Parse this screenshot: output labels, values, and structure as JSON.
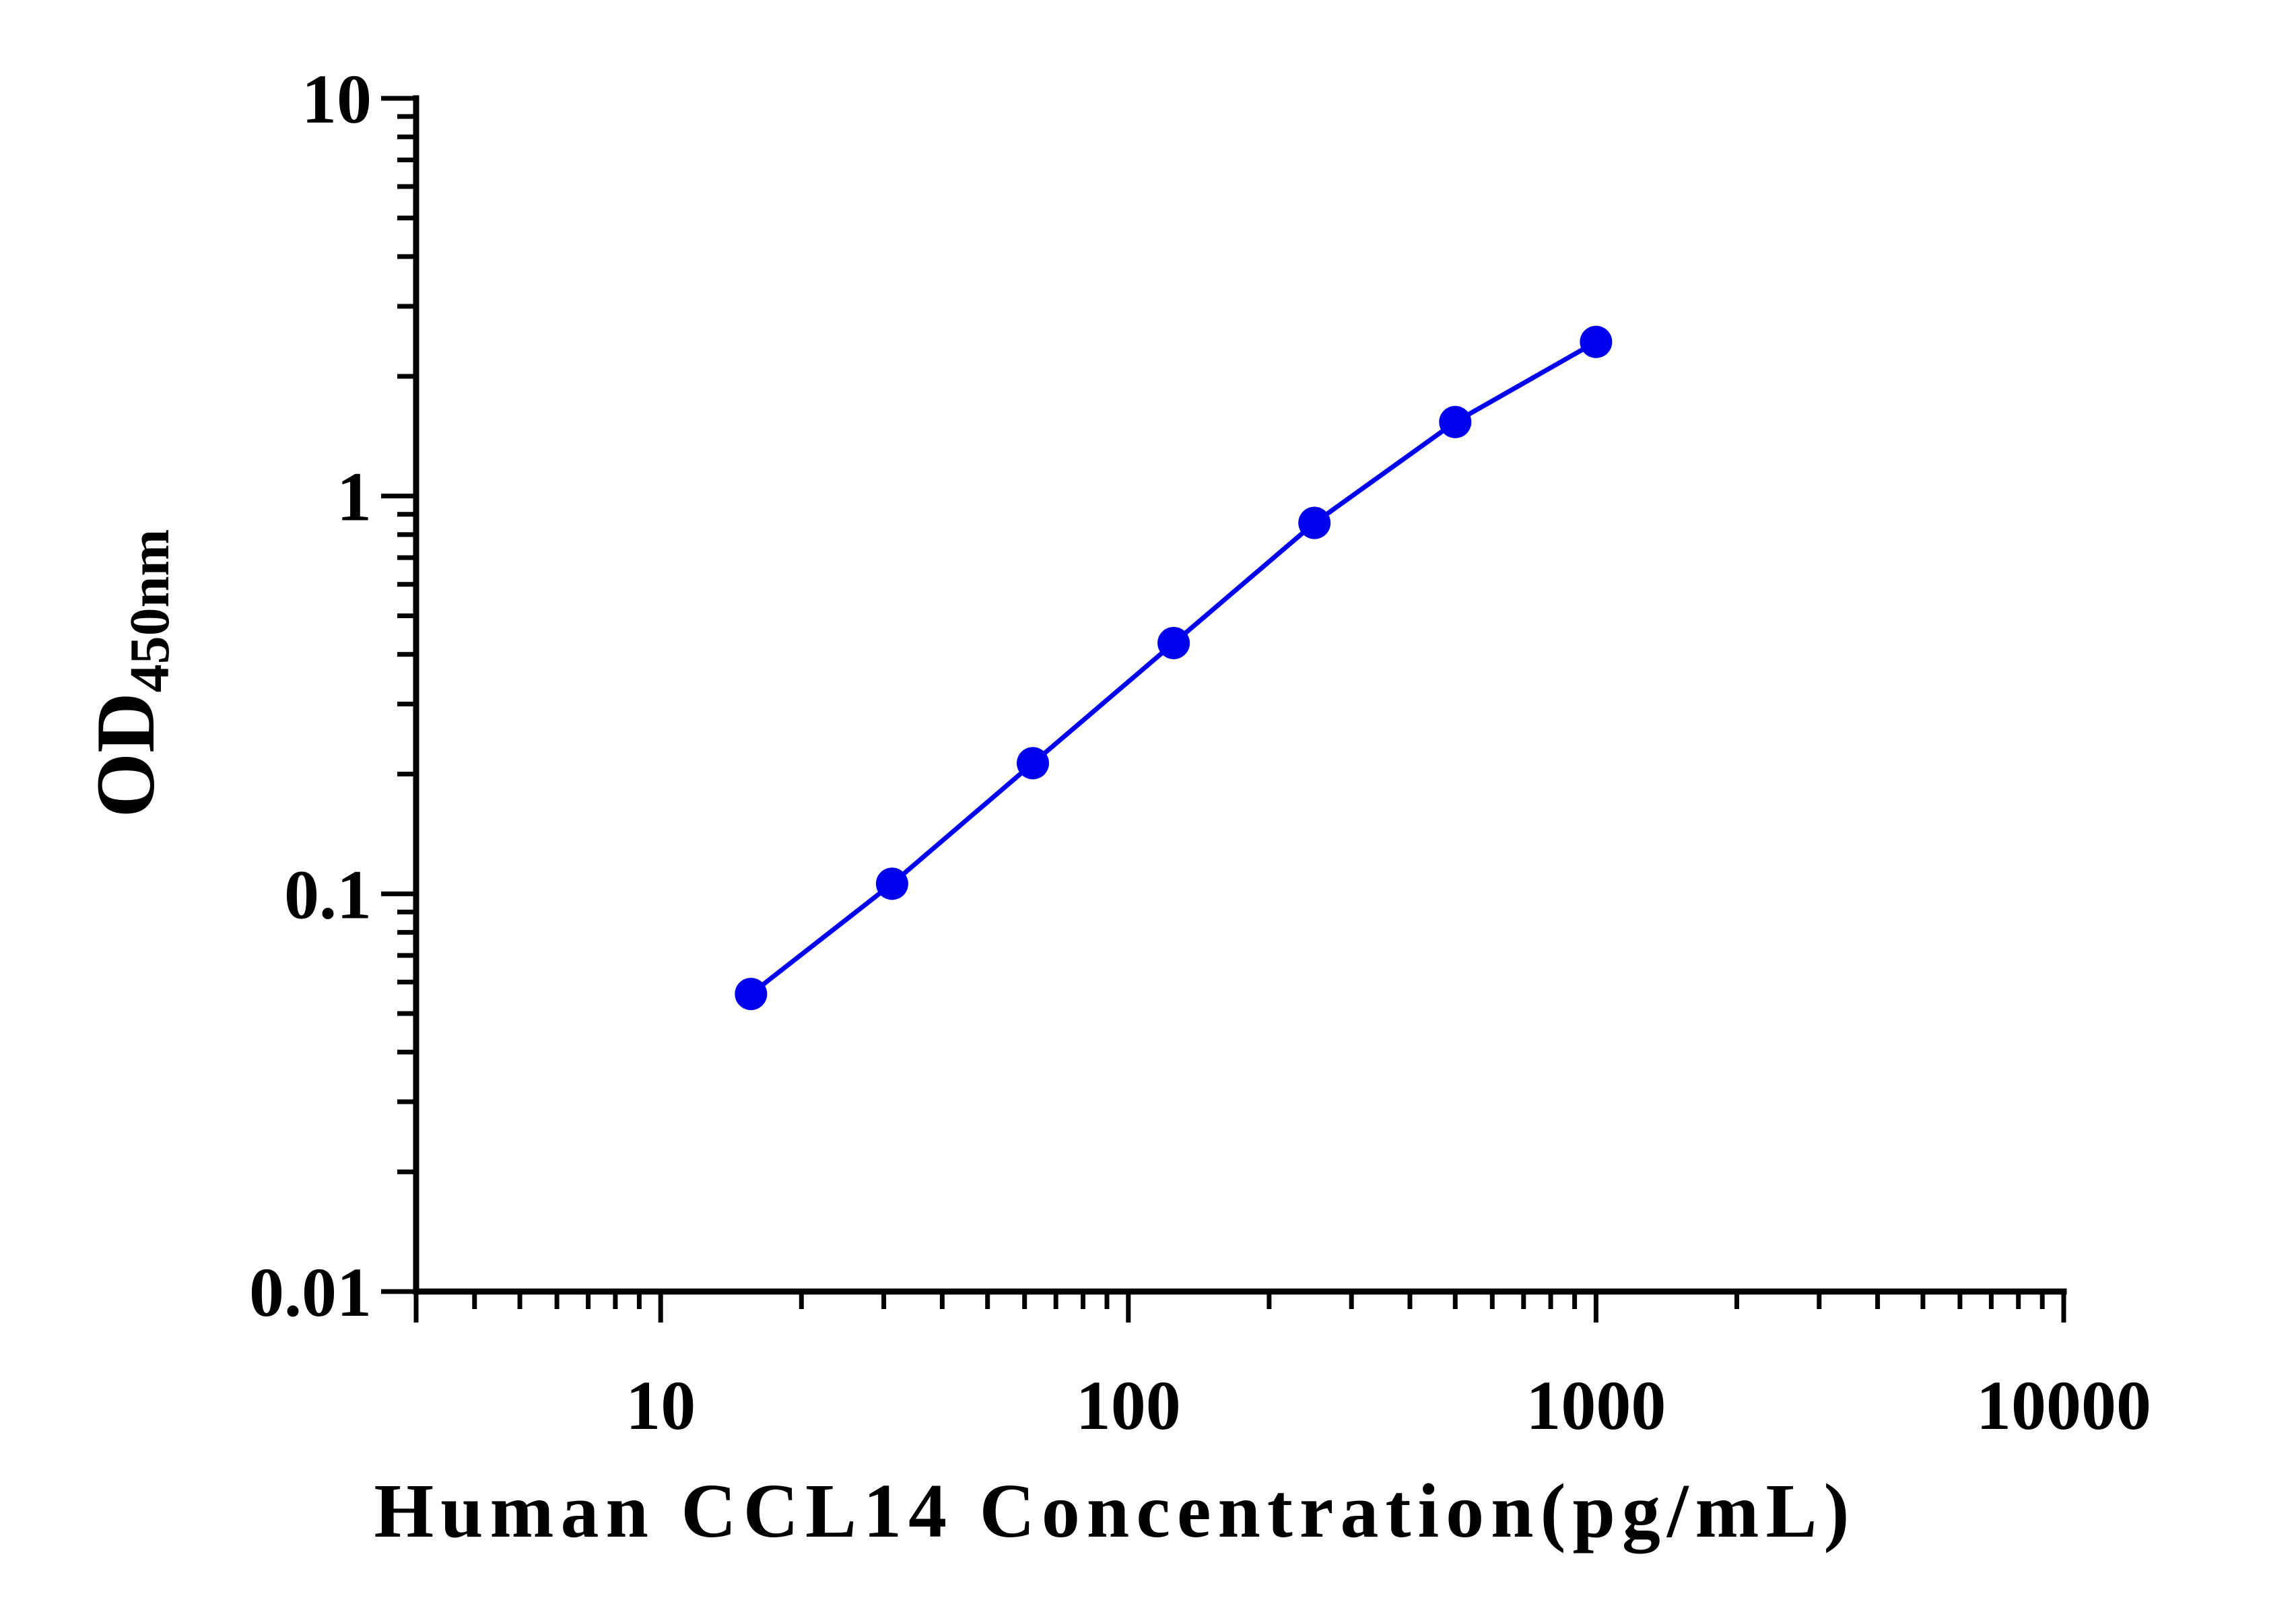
{
  "chart_data": {
    "type": "line",
    "x_scale": "log",
    "y_scale": "log",
    "xlim": [
      3,
      10000
    ],
    "ylim": [
      0.01,
      10
    ],
    "x_ticks": [
      {
        "value": 10,
        "label": "10"
      },
      {
        "value": 100,
        "label": "100"
      },
      {
        "value": 1000,
        "label": "1000"
      },
      {
        "value": 10000,
        "label": "10000"
      }
    ],
    "y_ticks": [
      {
        "value": 0.01,
        "label": "0.01"
      },
      {
        "value": 0.1,
        "label": "0.1"
      },
      {
        "value": 1,
        "label": "1"
      },
      {
        "value": 10,
        "label": "10"
      }
    ],
    "xlabel": "Human CCL14 Concentration(pg/mL)",
    "ylabel": "OD",
    "ylabel_subscript": "450nm",
    "grid": false,
    "series": [
      {
        "color": "#0000ee",
        "marker": "circle",
        "x": [
          15.6,
          31.25,
          62.5,
          125,
          250,
          500,
          1000
        ],
        "y": [
          0.056,
          0.106,
          0.213,
          0.427,
          0.856,
          1.535,
          2.441
        ]
      }
    ]
  }
}
